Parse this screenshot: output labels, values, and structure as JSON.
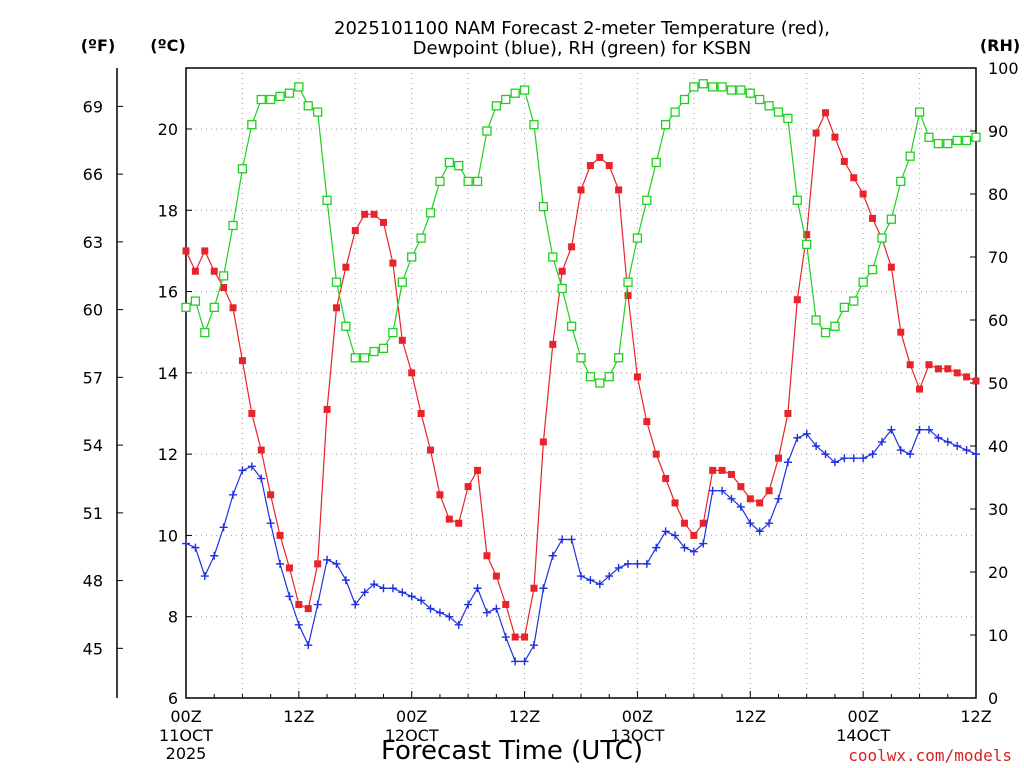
{
  "chart_data": {
    "type": "line",
    "title": [
      "2025101100 NAM Forecast 2-meter Temperature (red),",
      "Dewpoint (blue), RH (green) for KSBN"
    ],
    "units": {
      "fahrenheit": "(ºF)",
      "celsius": "(ºC)",
      "rh": "(RH)"
    },
    "xlabel": "Forecast Time (UTC)",
    "credit": "coolwx.com/models",
    "hours_range": [
      0,
      84
    ],
    "ylim_c": [
      6,
      21.5
    ],
    "ylim_rh": [
      0,
      100
    ],
    "x_ticks": [
      {
        "hour": 0,
        "label": "00Z"
      },
      {
        "hour": 12,
        "label": "12Z"
      },
      {
        "hour": 24,
        "label": "00Z"
      },
      {
        "hour": 36,
        "label": "12Z"
      },
      {
        "hour": 48,
        "label": "00Z"
      },
      {
        "hour": 60,
        "label": "12Z"
      },
      {
        "hour": 72,
        "label": "00Z"
      },
      {
        "hour": 84,
        "label": "12Z"
      }
    ],
    "date_labels": [
      {
        "hour": 0,
        "label": "11OCT"
      },
      {
        "hour": 24,
        "label": "12OCT"
      },
      {
        "hour": 48,
        "label": "13OCT"
      },
      {
        "hour": 72,
        "label": "14OCT"
      }
    ],
    "year_label": "2025",
    "c_ticks": [
      6,
      8,
      10,
      12,
      14,
      16,
      18,
      20
    ],
    "f_ticks": [
      45,
      48,
      51,
      54,
      57,
      60,
      63,
      66,
      69
    ],
    "rh_ticks": [
      0,
      10,
      20,
      30,
      40,
      50,
      60,
      70,
      80,
      90,
      100
    ],
    "series": [
      {
        "name": "Temperature",
        "color": "#e8242a",
        "marker": "square-filled",
        "hours": [
          0,
          1,
          2,
          3,
          4,
          5,
          6,
          7,
          8,
          9,
          10,
          11,
          12,
          13,
          14,
          15,
          16,
          17,
          18,
          19,
          20,
          21,
          22,
          23,
          24,
          25,
          26,
          27,
          28,
          29,
          30,
          31,
          32,
          33,
          34,
          35,
          36,
          37,
          38,
          39,
          40,
          41,
          42,
          43,
          44,
          45,
          46,
          47,
          48,
          49,
          50,
          51,
          52,
          53,
          54,
          55,
          56,
          57,
          58,
          59,
          60,
          61,
          62,
          63,
          64,
          65,
          66,
          67,
          68,
          69,
          70,
          71,
          72,
          73,
          74,
          75,
          76,
          77,
          78,
          79,
          80,
          81,
          82,
          83,
          84
        ],
        "values": [
          17.0,
          16.5,
          17.0,
          16.5,
          16.1,
          15.6,
          14.3,
          13.0,
          12.1,
          11.0,
          10.0,
          9.2,
          8.3,
          8.2,
          9.3,
          13.1,
          15.6,
          16.6,
          17.5,
          17.9,
          17.9,
          17.7,
          16.7,
          14.8,
          14.0,
          13.0,
          12.1,
          11.0,
          10.4,
          10.3,
          11.2,
          11.6,
          9.5,
          9.0,
          8.3,
          7.5,
          7.5,
          8.7,
          12.3,
          14.7,
          16.5,
          17.1,
          18.5,
          19.1,
          19.3,
          19.1,
          18.5,
          15.9,
          13.9,
          12.8,
          12.0,
          11.4,
          10.8,
          10.3,
          10.0,
          10.3,
          11.6,
          11.6,
          11.5,
          11.2,
          10.9,
          10.8,
          11.1,
          11.9,
          13.0,
          15.8,
          17.4,
          19.9,
          20.4,
          19.8,
          19.2,
          18.8,
          18.4,
          17.8,
          17.3,
          16.6,
          15.0,
          14.2,
          13.6,
          14.2,
          14.1,
          14.1,
          14.0,
          13.9,
          13.8
        ]
      },
      {
        "name": "Dewpoint",
        "color": "#2030e0",
        "marker": "plus",
        "hours": [
          0,
          1,
          2,
          3,
          4,
          5,
          6,
          7,
          8,
          9,
          10,
          11,
          12,
          13,
          14,
          15,
          16,
          17,
          18,
          19,
          20,
          21,
          22,
          23,
          24,
          25,
          26,
          27,
          28,
          29,
          30,
          31,
          32,
          33,
          34,
          35,
          36,
          37,
          38,
          39,
          40,
          41,
          42,
          43,
          44,
          45,
          46,
          47,
          48,
          49,
          50,
          51,
          52,
          53,
          54,
          55,
          56,
          57,
          58,
          59,
          60,
          61,
          62,
          63,
          64,
          65,
          66,
          67,
          68,
          69,
          70,
          71,
          72,
          73,
          74,
          75,
          76,
          77,
          78,
          79,
          80,
          81,
          82,
          83,
          84
        ],
        "values": [
          9.8,
          9.7,
          9.0,
          9.5,
          10.2,
          11.0,
          11.6,
          11.7,
          11.4,
          10.3,
          9.3,
          8.5,
          7.8,
          7.3,
          8.3,
          9.4,
          9.3,
          8.9,
          8.3,
          8.6,
          8.8,
          8.7,
          8.7,
          8.6,
          8.5,
          8.4,
          8.2,
          8.1,
          8.0,
          7.8,
          8.3,
          8.7,
          8.1,
          8.2,
          7.5,
          6.9,
          6.9,
          7.3,
          8.7,
          9.5,
          9.9,
          9.9,
          9.0,
          8.9,
          8.8,
          9.0,
          9.2,
          9.3,
          9.3,
          9.3,
          9.7,
          10.1,
          10.0,
          9.7,
          9.6,
          9.8,
          11.1,
          11.1,
          10.9,
          10.7,
          10.3,
          10.1,
          10.3,
          10.9,
          11.8,
          12.4,
          12.5,
          12.2,
          12.0,
          11.8,
          11.9,
          11.9,
          11.9,
          12.0,
          12.3,
          12.6,
          12.1,
          12.0,
          12.6,
          12.6,
          12.4,
          12.3,
          12.2,
          12.1,
          12.0
        ]
      },
      {
        "name": "RH",
        "color": "#20d020",
        "marker": "square-open",
        "hours": [
          0,
          1,
          2,
          3,
          4,
          5,
          6,
          7,
          8,
          9,
          10,
          11,
          12,
          13,
          14,
          15,
          16,
          17,
          18,
          19,
          20,
          21,
          22,
          23,
          24,
          25,
          26,
          27,
          28,
          29,
          30,
          31,
          32,
          33,
          34,
          35,
          36,
          37,
          38,
          39,
          40,
          41,
          42,
          43,
          44,
          45,
          46,
          47,
          48,
          49,
          50,
          51,
          52,
          53,
          54,
          55,
          56,
          57,
          58,
          59,
          60,
          61,
          62,
          63,
          64,
          65,
          66,
          67,
          68,
          69,
          70,
          71,
          72,
          73,
          74,
          75,
          76,
          77,
          78,
          79,
          80,
          81,
          82,
          83,
          84
        ],
        "values": [
          62,
          63,
          58,
          62,
          67,
          75,
          84,
          91,
          95,
          95,
          95.5,
          96,
          97,
          94,
          93,
          79,
          66,
          59,
          54,
          54,
          55,
          55.5,
          58,
          66,
          70,
          73,
          77,
          82,
          85,
          84.5,
          82,
          82,
          90,
          94,
          95,
          96,
          96.5,
          91,
          78,
          70,
          65,
          59,
          54,
          51,
          50,
          51,
          54,
          66,
          73,
          79,
          85,
          91,
          93,
          95,
          97,
          97.5,
          97,
          97,
          96.5,
          96.5,
          96,
          95,
          94,
          93,
          92,
          79,
          72,
          60,
          58,
          59,
          62,
          63,
          66,
          68,
          73,
          76,
          82,
          86,
          93,
          89,
          88,
          88,
          88.5,
          88.5,
          89
        ]
      }
    ]
  }
}
